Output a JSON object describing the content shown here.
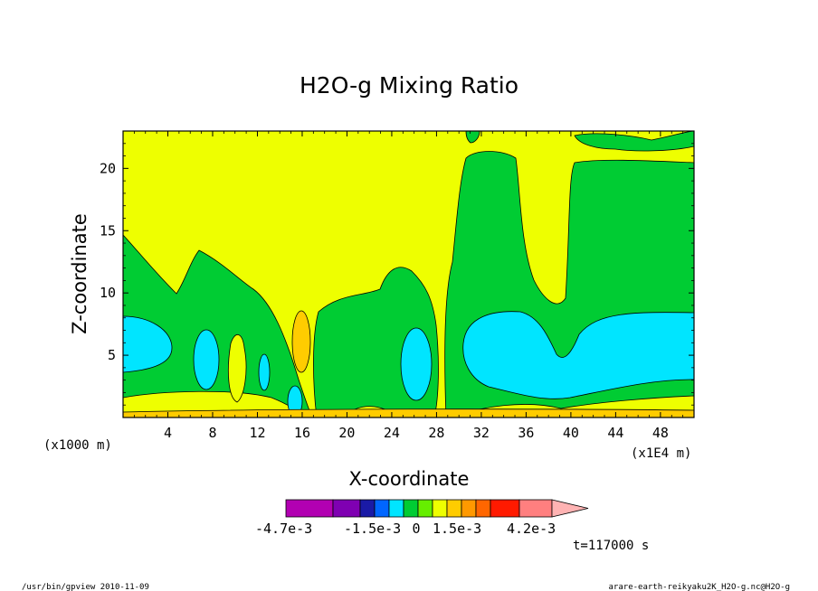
{
  "chart_data": {
    "type": "heatmap",
    "title": "H2O-g Mixing Ratio",
    "xlabel": "X-coordinate",
    "ylabel": "Z-coordinate",
    "x_unit_note": "(x1000 m)",
    "x_scale_note": "(x1E4 m)",
    "xlim": [
      0,
      51
    ],
    "ylim": [
      0,
      23
    ],
    "x_ticks": [
      "4",
      "8",
      "12",
      "16",
      "20",
      "24",
      "28",
      "32",
      "36",
      "40",
      "44",
      "48"
    ],
    "y_ticks": [
      "5",
      "10",
      "15",
      "20"
    ],
    "time_label": "t=117000 s",
    "colorbar": {
      "colors": [
        "#b200b2",
        "#7f00b2",
        "#1a1aa6",
        "#0066ff",
        "#00e5ff",
        "#00cc33",
        "#66ee00",
        "#eeff00",
        "#ffcc00",
        "#ff9900",
        "#ff6600",
        "#ff1a00",
        "#ff7f7f",
        "#ffb3b3"
      ],
      "labels": [
        "-4.7e-3",
        "-1.5e-3",
        "0",
        "1.5e-3",
        "4.2e-3"
      ]
    }
  },
  "footer": {
    "left": "/usr/bin/gpview  2010-11-09",
    "right": "arare-earth-reikyaku2K_H2O-g.nc@H2O-g"
  }
}
